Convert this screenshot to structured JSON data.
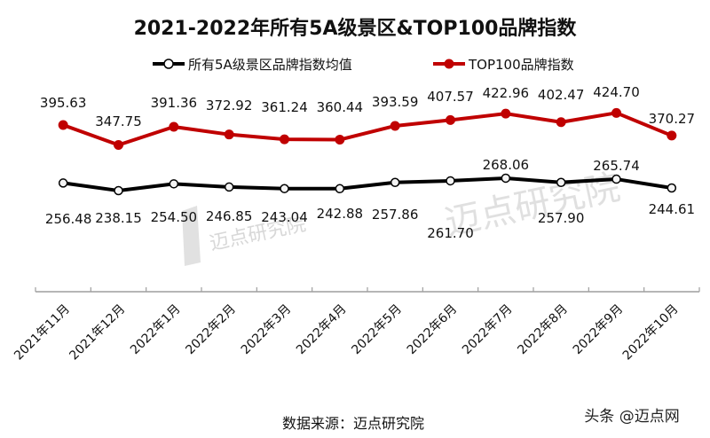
{
  "title": "2021-2022年所有5A级景区&TOP100品牌指数",
  "legend": [
    {
      "label": "所有5A级景区品牌指数均值",
      "color": "#000000",
      "marker": "hollow-circle"
    },
    {
      "label": "TOP100品牌指数",
      "color": "#C00000",
      "marker": "filled-circle"
    }
  ],
  "source": "数据来源：迈点研究院",
  "watermark": "迈点研究院",
  "corner_credit": "头条 @迈点网",
  "colors": {
    "avg_line": "#000000",
    "top100_line": "#C00000",
    "axis": "#9e9e9e"
  },
  "chart_data": {
    "type": "line",
    "title": "2021-2022年所有5A级景区&TOP100品牌指数",
    "xlabel": "",
    "ylabel": "",
    "categories": [
      "2021年11月",
      "2021年12月",
      "2022年1月",
      "2022年2月",
      "2022年3月",
      "2022年4月",
      "2022年5月",
      "2022年6月",
      "2022年7月",
      "2022年8月",
      "2022年9月",
      "2022年10月"
    ],
    "series": [
      {
        "name": "所有5A级景区品牌指数均值",
        "values": [
          256.48,
          238.15,
          254.5,
          246.85,
          243.04,
          242.88,
          257.86,
          261.7,
          268.06,
          257.9,
          265.74,
          244.61
        ]
      },
      {
        "name": "TOP100品牌指数",
        "values": [
          395.63,
          347.75,
          391.36,
          372.92,
          361.24,
          360.44,
          393.59,
          407.57,
          422.96,
          402.47,
          424.7,
          370.27
        ]
      }
    ],
    "grid": false,
    "legend_position": "top",
    "data_labels": true
  }
}
